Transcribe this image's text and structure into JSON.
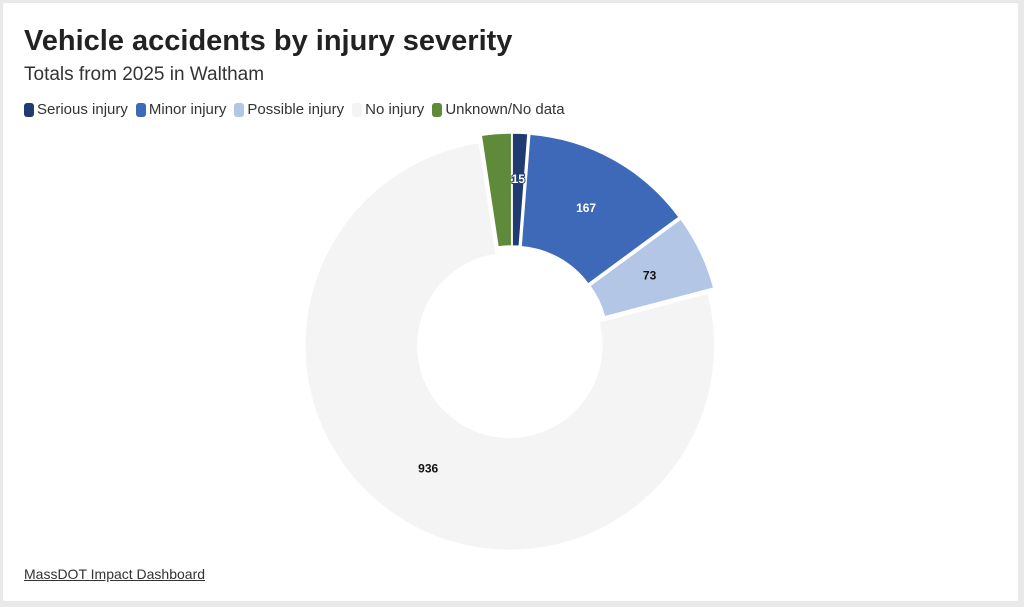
{
  "title": "Vehicle accidents by injury severity",
  "subtitle": "Totals from 2025 in Waltham",
  "source_link": "MassDOT Impact Dashboard",
  "chart_data": {
    "type": "pie",
    "donut": true,
    "legend_position": "top-left",
    "categories": [
      "Serious injury",
      "Minor injury",
      "Possible injury",
      "No injury",
      "Unknown/No data"
    ],
    "values": [
      15,
      167,
      73,
      936,
      29
    ],
    "data_labels": [
      "15",
      "167",
      "73",
      "936",
      ""
    ],
    "colors": [
      "#203a72",
      "#3e68b8",
      "#b3c6e6",
      "#f3f4f3",
      "#5f8a3a"
    ],
    "label_colors": [
      "#ffffff",
      "#ffffff",
      "#111111",
      "#111111",
      "#ffffff"
    ]
  }
}
